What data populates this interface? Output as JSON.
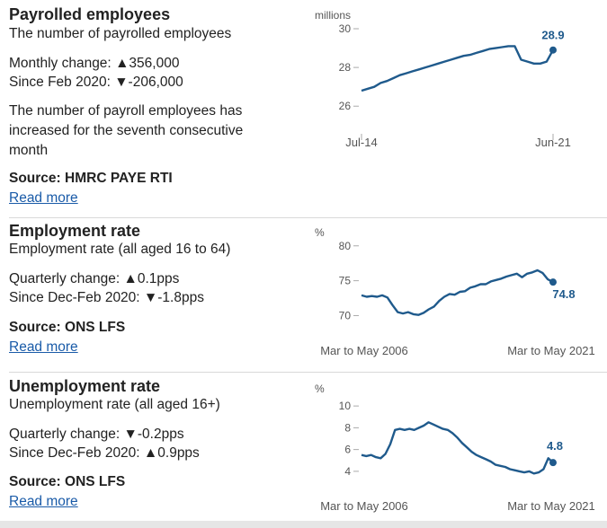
{
  "panels": [
    {
      "title": "Payrolled employees",
      "subtitle": "The number of payrolled employees",
      "stat1_label": "Monthly change:",
      "stat1_arrow": "▲",
      "stat1_value": "356,000",
      "stat2_label": "Since Feb 2020:",
      "stat2_arrow": "▼",
      "stat2_value": "-206,000",
      "description": "The number of payroll employees has increased for the seventh consecutive month",
      "source": "Source: HMRC PAYE RTI",
      "read_more": "Read more"
    },
    {
      "title": "Employment rate",
      "subtitle": "Employment rate (all aged 16 to 64)",
      "stat1_label": "Quarterly change:",
      "stat1_arrow": "▲",
      "stat1_value": "0.1pps",
      "stat2_label": "Since Dec-Feb 2020:",
      "stat2_arrow": "▼",
      "stat2_value": "-1.8pps",
      "source": "Source: ONS LFS",
      "read_more": "Read more"
    },
    {
      "title": "Unemployment rate",
      "subtitle": "Unemployment rate (all aged 16+)",
      "stat1_label": "Quarterly change:",
      "stat1_arrow": "▼",
      "stat1_value": "-0.2pps",
      "stat2_label": "Since Dec-Feb 2020:",
      "stat2_arrow": "▲",
      "stat2_value": "0.9pps",
      "source": "Source: ONS LFS",
      "read_more": "Read more"
    }
  ],
  "colors": {
    "line": "#1f5a8c",
    "link": "#1a5ba8",
    "axis_text": "#555555",
    "label": "#1f5a8c"
  },
  "chart_data": [
    {
      "type": "line",
      "unit_label": "millions",
      "ylim": [
        25.5,
        30
      ],
      "yticks": [
        26,
        28,
        30
      ],
      "x_start_label": "Jul-14",
      "x_end_label": "Jun-21",
      "end_label": "28.9",
      "series": [
        {
          "values": [
            26.8,
            26.9,
            27.0,
            27.2,
            27.3,
            27.45,
            27.6,
            27.7,
            27.8,
            27.9,
            28.0,
            28.1,
            28.2,
            28.3,
            28.4,
            28.5,
            28.6,
            28.65,
            28.75,
            28.85,
            28.95,
            29.0,
            29.05,
            29.1,
            29.1,
            28.4,
            28.3,
            28.2,
            28.2,
            28.3,
            28.9
          ]
        }
      ]
    },
    {
      "type": "line",
      "unit_label": "%",
      "ylim": [
        68,
        81
      ],
      "yticks": [
        70,
        75,
        80
      ],
      "x_start_label": "Mar to May 2006",
      "x_end_label": "Mar to May 2021",
      "end_label": "74.8",
      "series": [
        {
          "values": [
            72.9,
            72.7,
            72.8,
            72.7,
            72.9,
            72.6,
            71.5,
            70.5,
            70.3,
            70.5,
            70.2,
            70.1,
            70.4,
            70.9,
            71.3,
            72.1,
            72.7,
            73.1,
            73.0,
            73.4,
            73.5,
            74.0,
            74.2,
            74.5,
            74.5,
            74.9,
            75.1,
            75.3,
            75.6,
            75.8,
            76.0,
            75.5,
            76.0,
            76.2,
            76.5,
            76.1,
            75.2,
            74.8
          ]
        }
      ]
    },
    {
      "type": "line",
      "unit_label": "%",
      "ylim": [
        3,
        11
      ],
      "yticks": [
        4,
        6,
        8,
        10
      ],
      "x_start_label": "Mar to May 2006",
      "x_end_label": "Mar to May 2021",
      "end_label": "4.8",
      "series": [
        {
          "values": [
            5.5,
            5.4,
            5.5,
            5.3,
            5.2,
            5.6,
            6.5,
            7.8,
            7.9,
            7.8,
            7.9,
            7.8,
            8.0,
            8.2,
            8.5,
            8.3,
            8.1,
            7.9,
            7.8,
            7.5,
            7.1,
            6.6,
            6.2,
            5.8,
            5.5,
            5.3,
            5.1,
            4.9,
            4.6,
            4.5,
            4.4,
            4.2,
            4.1,
            4.0,
            3.9,
            4.0,
            3.8,
            3.9,
            4.2,
            5.2,
            4.8
          ]
        }
      ]
    }
  ]
}
